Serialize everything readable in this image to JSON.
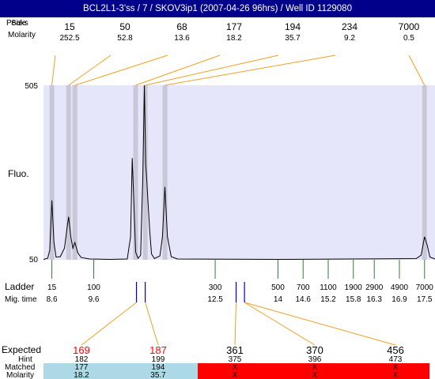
{
  "window": {
    "title": "BCL2L1-3'ss / 7 / SKOV3ip1 (2007-04-26 96hrs) / Well ID 1129080"
  },
  "colors": {
    "plot_background": "#e6e6fa",
    "peak_band": "#c8c8d8",
    "leader_line": "#f0a020",
    "ladder_tick": "#2e7d32",
    "hint_tick": "#0000cc",
    "matched_fill": "#add8e6",
    "unmatched_fill": "#ff0000",
    "expected_matched_text": "#ff0000"
  },
  "labels": {
    "peaks_header": "Peaks",
    "size_header": "Size",
    "molarity_header": "Molarity",
    "fluo_axis": "Fluo.",
    "ladder_label": "Ladder",
    "migtime_label": "Mig. time",
    "expected_label": "Expected",
    "hint_label": "Hint",
    "matched_label": "Matched",
    "molarity_label": "Molarity"
  },
  "chart_data": {
    "type": "line",
    "ylabel": "Fluo.",
    "ylim": [
      50,
      505
    ],
    "y_ticks": [
      "505",
      "50"
    ],
    "xlim": [
      8.4,
      17.75
    ],
    "x_unit": "migration time",
    "peaks": [
      {
        "size": "15",
        "molarity": "252.5",
        "time": 8.6
      },
      {
        "size": "50",
        "molarity": "52.8",
        "time": 9.0
      },
      {
        "size": "68",
        "molarity": "13.6",
        "time": 9.15
      },
      {
        "size": "177",
        "molarity": "18.2",
        "time": 10.6
      },
      {
        "size": "194",
        "molarity": "35.7",
        "time": 10.83
      },
      {
        "size": "234",
        "molarity": "9.2",
        "time": 11.3
      },
      {
        "size": "7000",
        "molarity": "0.5",
        "time": 17.5
      }
    ],
    "trace": [
      [
        8.4,
        51
      ],
      [
        8.5,
        54
      ],
      [
        8.55,
        75
      ],
      [
        8.6,
        205
      ],
      [
        8.65,
        95
      ],
      [
        8.7,
        57
      ],
      [
        8.8,
        58
      ],
      [
        8.9,
        80
      ],
      [
        8.97,
        140
      ],
      [
        9.0,
        162
      ],
      [
        9.05,
        112
      ],
      [
        9.1,
        80
      ],
      [
        9.15,
        95
      ],
      [
        9.22,
        68
      ],
      [
        9.3,
        56
      ],
      [
        9.5,
        52
      ],
      [
        10.0,
        51
      ],
      [
        10.4,
        52
      ],
      [
        10.48,
        110
      ],
      [
        10.52,
        315
      ],
      [
        10.56,
        190
      ],
      [
        10.6,
        70
      ],
      [
        10.66,
        54
      ],
      [
        10.72,
        62
      ],
      [
        10.77,
        260
      ],
      [
        10.81,
        505
      ],
      [
        10.84,
        300
      ],
      [
        10.87,
        250
      ],
      [
        10.9,
        190
      ],
      [
        10.94,
        120
      ],
      [
        10.98,
        65
      ],
      [
        11.05,
        53
      ],
      [
        11.18,
        60
      ],
      [
        11.24,
        110
      ],
      [
        11.3,
        240
      ],
      [
        11.36,
        110
      ],
      [
        11.45,
        58
      ],
      [
        11.6,
        52
      ],
      [
        14.0,
        51
      ],
      [
        17.3,
        53
      ],
      [
        17.42,
        62
      ],
      [
        17.5,
        110
      ],
      [
        17.56,
        90
      ],
      [
        17.63,
        57
      ],
      [
        17.75,
        52
      ]
    ],
    "ladder": [
      {
        "size": "15",
        "time": "8.6",
        "t": 8.6
      },
      {
        "size": "100",
        "time": "9.6",
        "t": 9.6
      },
      {
        "size": "300",
        "time": "12.5",
        "t": 12.5
      },
      {
        "size": "500",
        "time": "14",
        "t": 14.0
      },
      {
        "size": "700",
        "time": "14.6",
        "t": 14.6
      },
      {
        "size": "1100",
        "time": "15.2",
        "t": 15.2
      },
      {
        "size": "1900",
        "time": "15.8",
        "t": 15.8
      },
      {
        "size": "2900",
        "time": "16.3",
        "t": 16.3
      },
      {
        "size": "4900",
        "time": "16.9",
        "t": 16.9
      },
      {
        "size": "7000",
        "time": "17.5",
        "t": 17.5
      }
    ],
    "hint_times": [
      10.62,
      10.83,
      13.0,
      13.2
    ],
    "expected": [
      {
        "expected": "169",
        "hint": "182",
        "matched": "177",
        "molarity": "18.2",
        "status": "matched"
      },
      {
        "expected": "187",
        "hint": "199",
        "matched": "194",
        "molarity": "35.7",
        "status": "matched"
      },
      {
        "expected": "361",
        "hint": "375",
        "matched": "X",
        "molarity": "X",
        "status": "unmatched"
      },
      {
        "expected": "370",
        "hint": "396",
        "matched": "X",
        "molarity": "X",
        "status": "unmatched"
      },
      {
        "expected": "456",
        "hint": "473",
        "matched": "X",
        "molarity": "X",
        "status": "unmatched"
      }
    ]
  }
}
